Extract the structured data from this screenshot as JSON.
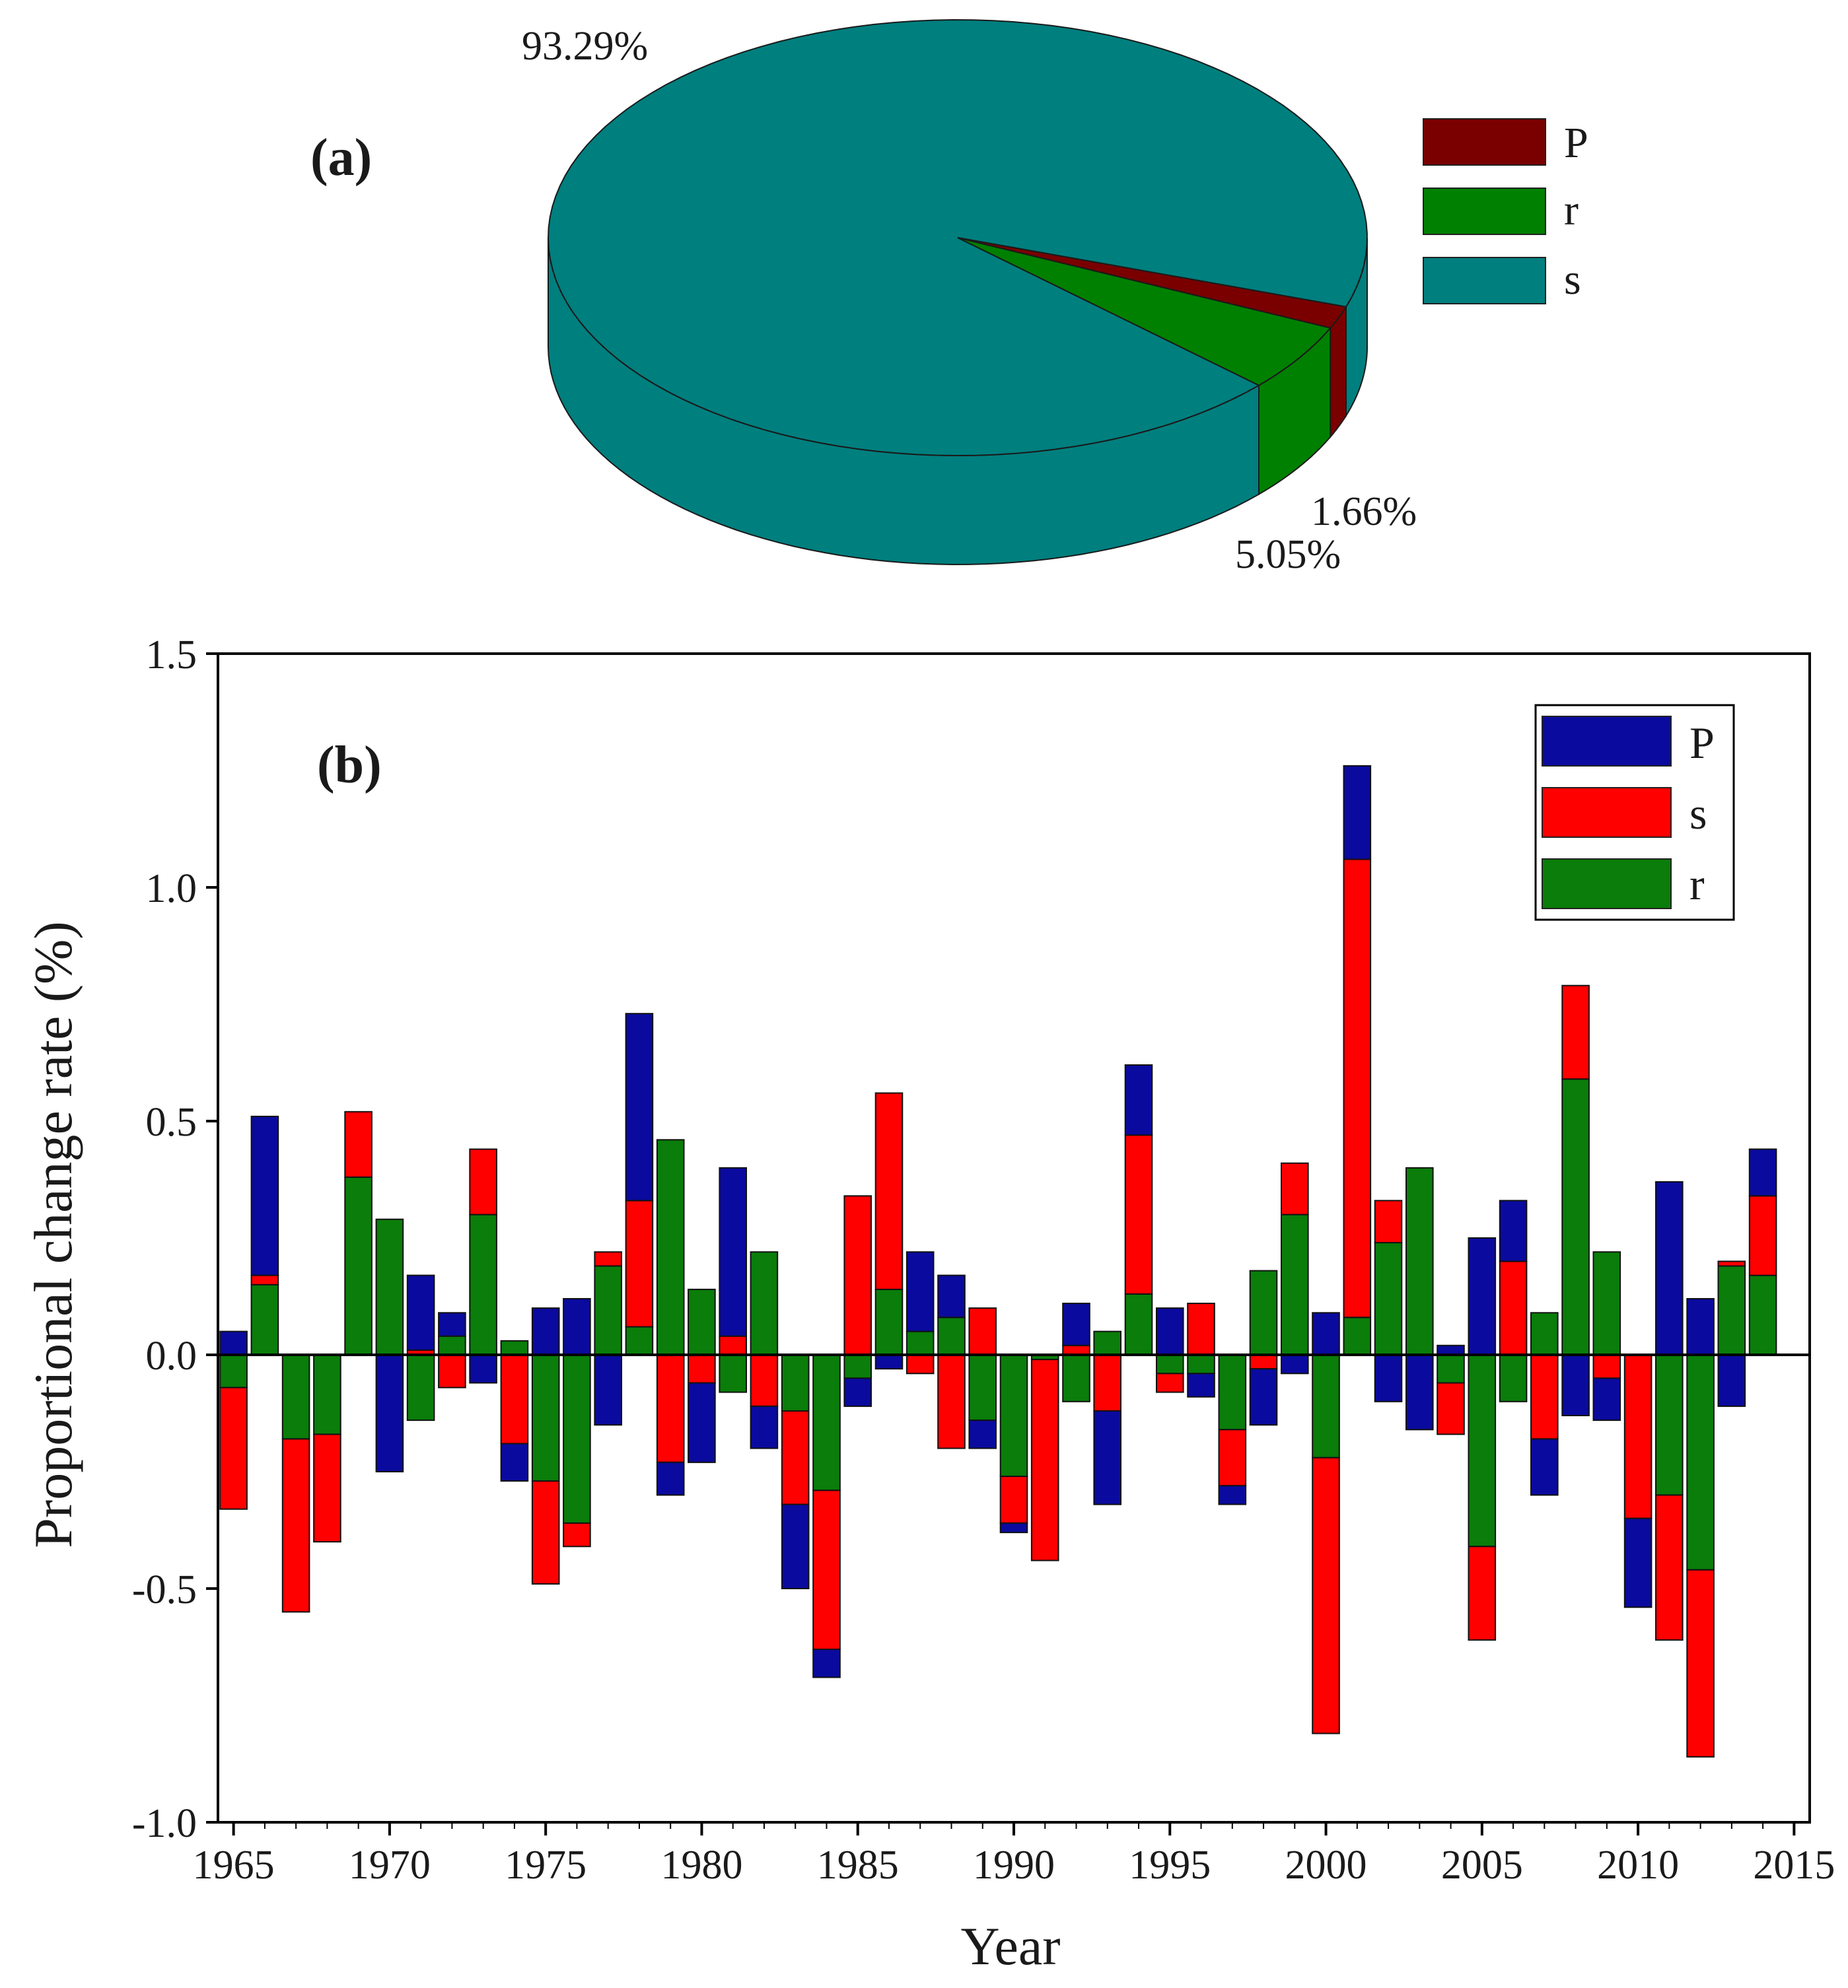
{
  "chart_data": [
    {
      "type": "pie",
      "panel_label": "(a)",
      "slices": [
        {
          "name": "P",
          "value": 1.66,
          "label": "1.66%",
          "color": "#7a0000"
        },
        {
          "name": "r",
          "value": 5.05,
          "label": "5.05%",
          "color": "#008000"
        },
        {
          "name": "s",
          "value": 93.29,
          "label": "93.29%",
          "color": "#007f7f"
        }
      ],
      "legend": [
        "P",
        "r",
        "s"
      ],
      "legend_position": "right",
      "style": "3d"
    },
    {
      "type": "bar",
      "stacked": true,
      "panel_label": "(b)",
      "xlabel": "Year",
      "ylabel": "Proportional change rate (%)",
      "ylim": [
        -1.0,
        1.5
      ],
      "xlim": [
        1964.5,
        2015.5
      ],
      "yticks": [
        "-1.0",
        "-0.5",
        "0.0",
        "0.5",
        "1.0",
        "1.5"
      ],
      "xticks": [
        "1965",
        "1970",
        "1975",
        "1980",
        "1985",
        "1990",
        "1995",
        "2000",
        "2005",
        "2010",
        "2015"
      ],
      "legend_position": "top-right",
      "colors": {
        "P": "#0a0a9e",
        "s": "#ff0000",
        "r": "#0a7d0a"
      },
      "legend": [
        "P",
        "s",
        "r"
      ],
      "years": [
        1965,
        1966,
        1967,
        1968,
        1969,
        1970,
        1971,
        1972,
        1973,
        1974,
        1975,
        1976,
        1977,
        1978,
        1979,
        1980,
        1981,
        1982,
        1983,
        1984,
        1985,
        1986,
        1987,
        1988,
        1989,
        1990,
        1991,
        1992,
        1993,
        1994,
        1995,
        1996,
        1997,
        1998,
        1999,
        2000,
        2001,
        2002,
        2003,
        2004,
        2005,
        2006,
        2007,
        2008,
        2009,
        2010,
        2011,
        2012,
        2013,
        2014
      ],
      "series": [
        {
          "name": "r",
          "values": [
            -0.07,
            0.15,
            -0.18,
            -0.17,
            0.38,
            0.29,
            -0.14,
            0.04,
            0.3,
            0.03,
            -0.27,
            -0.36,
            0.19,
            0.06,
            0.46,
            0.14,
            -0.08,
            0.22,
            -0.12,
            -0.29,
            -0.05,
            0.14,
            0.05,
            0.08,
            -0.14,
            -0.26,
            -0.01,
            -0.1,
            0.05,
            0.13,
            -0.04,
            -0.04,
            -0.16,
            0.18,
            0.3,
            -0.22,
            0.08,
            0.24,
            0.4,
            -0.06,
            -0.41,
            -0.1,
            0.09,
            0.59,
            0.22,
            0.0,
            -0.3,
            -0.46,
            0.19,
            0.17
          ]
        },
        {
          "name": "s",
          "values": [
            -0.26,
            0.02,
            -0.37,
            -0.23,
            0.14,
            0.0,
            0.01,
            -0.07,
            0.14,
            -0.19,
            -0.22,
            -0.05,
            0.03,
            0.27,
            -0.23,
            -0.06,
            0.04,
            -0.11,
            -0.2,
            -0.34,
            0.34,
            0.42,
            -0.04,
            -0.2,
            0.1,
            -0.1,
            -0.43,
            0.02,
            -0.12,
            0.34,
            -0.04,
            0.11,
            -0.12,
            -0.03,
            0.11,
            -0.59,
            0.98,
            0.09,
            0.0,
            -0.11,
            -0.2,
            0.2,
            -0.18,
            0.2,
            -0.05,
            -0.35,
            -0.31,
            -0.4,
            0.01,
            0.17
          ]
        },
        {
          "name": "P",
          "values": [
            0.05,
            0.34,
            0.0,
            0.0,
            0.0,
            -0.25,
            0.16,
            0.05,
            -0.06,
            -0.08,
            0.1,
            0.12,
            -0.15,
            0.4,
            -0.07,
            -0.17,
            0.36,
            -0.09,
            -0.18,
            -0.06,
            -0.06,
            -0.03,
            0.17,
            0.09,
            -0.06,
            -0.02,
            0.0,
            0.09,
            -0.2,
            0.15,
            0.1,
            -0.05,
            -0.04,
            -0.12,
            -0.04,
            0.09,
            0.2,
            -0.1,
            -0.16,
            0.02,
            0.25,
            0.13,
            -0.12,
            -0.13,
            -0.09,
            -0.19,
            0.37,
            0.12,
            -0.11,
            0.1
          ]
        }
      ]
    }
  ]
}
